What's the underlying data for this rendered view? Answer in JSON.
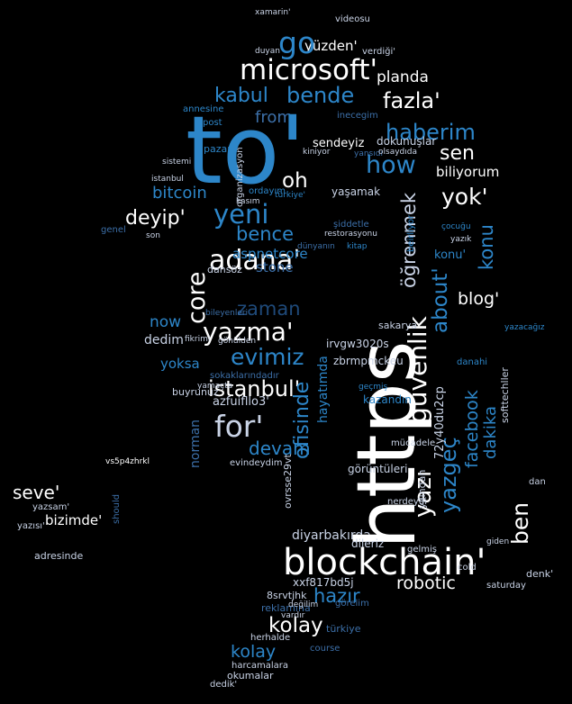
{
  "colors": {
    "background": "#000000",
    "white": "#ffffff",
    "pale": "#c9d3e6",
    "blue": "#2d86c9",
    "mid_blue": "#3c6fa8",
    "dark_blue": "#1f4a7a",
    "light_blue": "#9fb6d4"
  },
  "words": [
    {
      "text": "to'"
    },
    {
      "text": "https"
    },
    {
      "text": "blockchain'"
    },
    {
      "text": "microsoft'"
    },
    {
      "text": "go"
    },
    {
      "text": "yüzden'"
    },
    {
      "text": "kabul"
    },
    {
      "text": "bende"
    },
    {
      "text": "fazla'"
    },
    {
      "text": "haberim"
    },
    {
      "text": "how"
    },
    {
      "text": "sen"
    },
    {
      "text": "biliyorum"
    },
    {
      "text": "from"
    },
    {
      "text": "oh"
    },
    {
      "text": "yeni"
    },
    {
      "text": "deyip'"
    },
    {
      "text": "bitcoin"
    },
    {
      "text": "bence"
    },
    {
      "text": "adana'"
    },
    {
      "text": "core"
    },
    {
      "text": "aspnetcore"
    },
    {
      "text": "yazma'"
    },
    {
      "text": "evimiz"
    },
    {
      "text": "istanbul'"
    },
    {
      "text": "for'"
    },
    {
      "text": "devam"
    },
    {
      "text": "yok'"
    },
    {
      "text": "konu"
    },
    {
      "text": "blog'"
    },
    {
      "text": "about'"
    },
    {
      "text": "güvenlik"
    },
    {
      "text": "yazı"
    },
    {
      "text": "ben"
    },
    {
      "text": "facebook"
    },
    {
      "text": "yazgeç"
    },
    {
      "text": "seve'"
    },
    {
      "text": "bizimde'"
    },
    {
      "text": "yazsam'"
    },
    {
      "text": "yazısı'"
    },
    {
      "text": "hazır"
    },
    {
      "text": "kolay"
    },
    {
      "text": "robotic"
    },
    {
      "text": "diyarbakırda"
    },
    {
      "text": "sendeyiz"
    },
    {
      "text": "now"
    },
    {
      "text": "dedim"
    },
    {
      "text": "yoksa"
    },
    {
      "text": "zaman"
    },
    {
      "text": "stone"
    },
    {
      "text": "öğrenmek"
    },
    {
      "text": "planda"
    },
    {
      "text": "xamarin'"
    },
    {
      "text": "videosu"
    },
    {
      "text": "verdiği'"
    },
    {
      "text": "duyan'"
    },
    {
      "text": "dokunuşlar"
    },
    {
      "text": "yaşamak"
    },
    {
      "text": "dansöz"
    },
    {
      "text": "sakarya"
    },
    {
      "text": "buyrunuz"
    },
    {
      "text": "azfuifllo3'"
    },
    {
      "text": "evindeydim"
    },
    {
      "text": "ovrsse29vt"
    },
    {
      "text": "norman"
    },
    {
      "text": "nerdeydi"
    },
    {
      "text": "dileriz"
    },
    {
      "text": "xxf817bd5j"
    },
    {
      "text": "8srvtjhk"
    },
    {
      "text": "reklamına"
    },
    {
      "text": "herhalde"
    },
    {
      "text": "okumalar"
    },
    {
      "text": "harcamalara"
    },
    {
      "text": "dedik'"
    },
    {
      "text": "saturday"
    },
    {
      "text": "denk'"
    },
    {
      "text": "adresinde"
    },
    {
      "text": "vs5p4zhrkl"
    },
    {
      "text": "softtechller"
    },
    {
      "text": "kazandın"
    },
    {
      "text": "görüntüleri"
    },
    {
      "text": "irvgw3020s"
    },
    {
      "text": "zbrmpmckeu"
    },
    {
      "text": "kendileri"
    },
    {
      "text": "cgk7orj8zk"
    },
    {
      "text": "72y40du2cp"
    },
    {
      "text": "yılından"
    },
    {
      "text": "ofisinde"
    },
    {
      "text": "hayatımda"
    },
    {
      "text": "organizasyon"
    },
    {
      "text": "pazar"
    },
    {
      "text": "post"
    },
    {
      "text": "annesine"
    },
    {
      "text": "inecegim"
    },
    {
      "text": "ordayım"
    },
    {
      "text": "kasım"
    },
    {
      "text": "şiddetle"
    },
    {
      "text": "dünyanın"
    },
    {
      "text": "değilim"
    },
    {
      "text": "görelim"
    },
    {
      "text": "türkiye"
    },
    {
      "text": "course"
    },
    {
      "text": "gelmiş"
    },
    {
      "text": "cold"
    },
    {
      "text": "dan"
    },
    {
      "text": "soru"
    },
    {
      "text": "linki"
    },
    {
      "text": "dakika"
    },
    {
      "text": "mücadele"
    },
    {
      "text": "geçmiş"
    },
    {
      "text": "sokaklarındadır"
    },
    {
      "text": "bileyenleri"
    },
    {
      "text": "gönülden"
    },
    {
      "text": "should"
    },
    {
      "text": "genel"
    },
    {
      "text": "son"
    },
    {
      "text": "yansıdı"
    },
    {
      "text": "olsaydıda"
    },
    {
      "text": "kiniyor"
    },
    {
      "text": "istanbul"
    },
    {
      "text": "sistemi"
    },
    {
      "text": "detaylar"
    },
    {
      "text": "türkiye'"
    },
    {
      "text": "çocuğu"
    },
    {
      "text": "yazık"
    },
    {
      "text": "danahi"
    },
    {
      "text": "yazacağız"
    },
    {
      "text": "vardır"
    },
    {
      "text": "giden"
    },
    {
      "text": "restorasyonu"
    },
    {
      "text": "kitap"
    },
    {
      "text": "beirliyor"
    },
    {
      "text": "konu'"
    },
    {
      "text": "fikrimi"
    },
    {
      "text": "kent"
    },
    {
      "text": "yamaçta"
    }
  ]
}
